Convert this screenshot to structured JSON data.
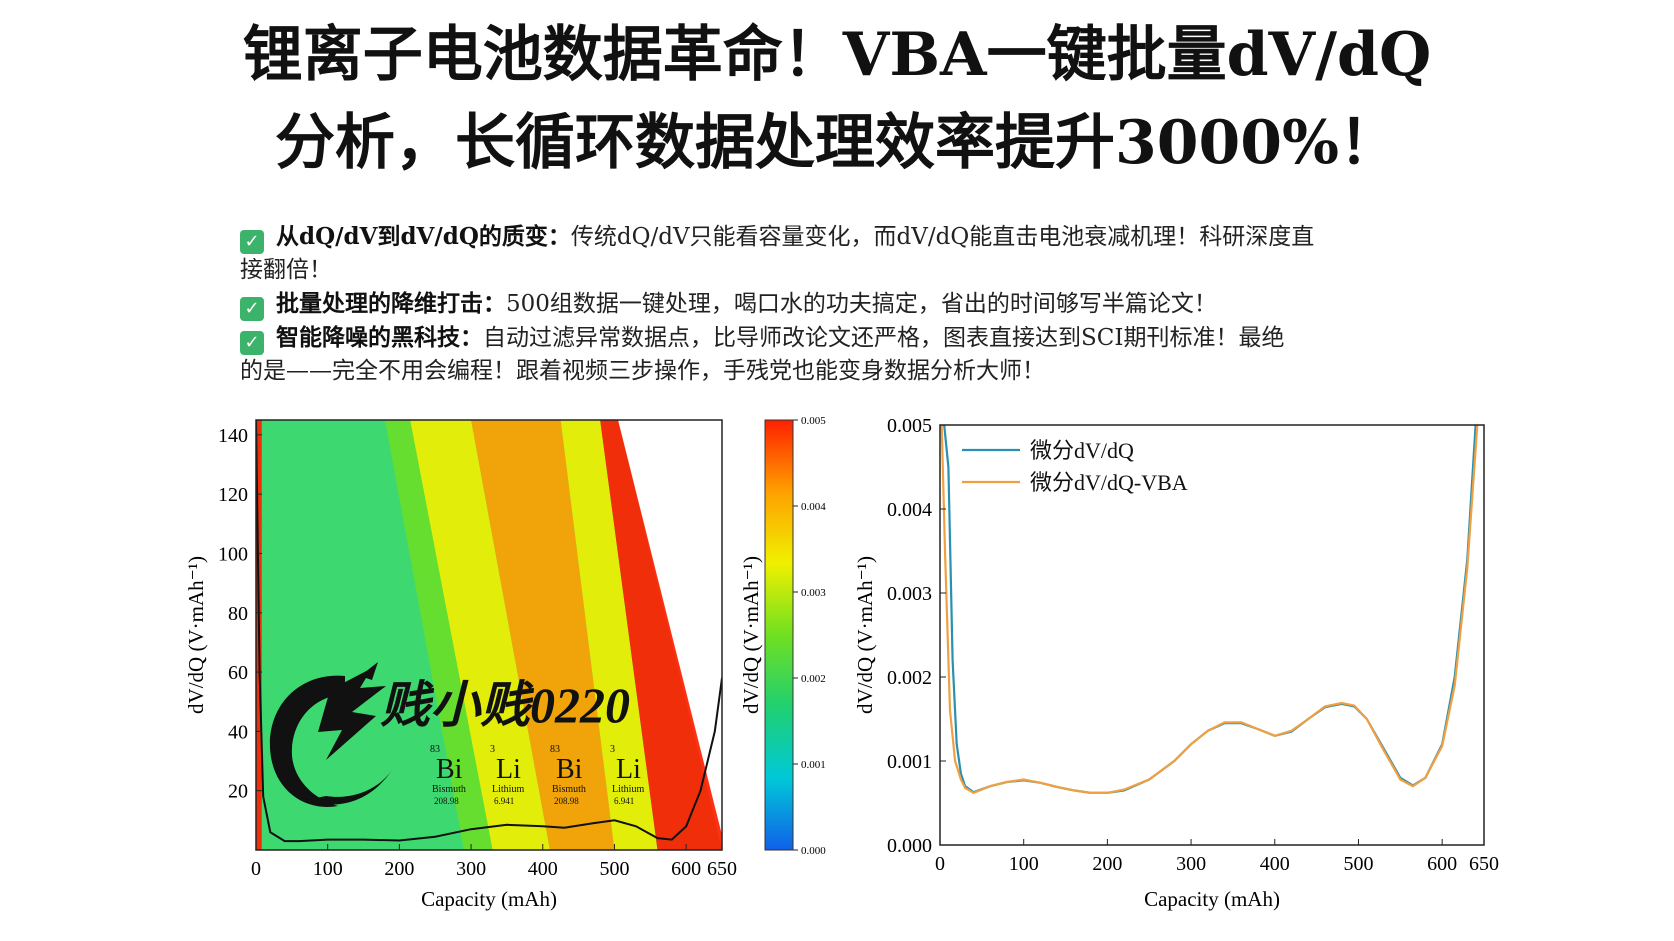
{
  "header": {
    "line1": "锂离子电池数据革命！VBA一键批量dV/dQ",
    "line2": "分析，长循环数据处理效率提升3000%！"
  },
  "bullets": [
    {
      "icon": "check-icon",
      "title": "从dQ/dV到dV/dQ的质变：",
      "text": "传统dQ/dV只能看容量变化，而dV/dQ能直击电池衰减机理！科研深度直",
      "cont": "接翻倍！"
    },
    {
      "icon": "check-icon",
      "title": "批量处理的降维打击：",
      "text": "500组数据一键处理，喝口水的功夫搞定，省出的时间够写半篇论文！",
      "cont": ""
    },
    {
      "icon": "check-icon",
      "title": "智能降噪的黑科技：",
      "text": "自动过滤异常数据点，比导师改论文还严格，图表直接达到SCI期刊标准！最绝",
      "cont": "的是——完全不用会编程！跟着视频三步操作，手残党也能变身数据分析大师！"
    }
  ],
  "watermark": {
    "text": "贱小贱0220",
    "elements": [
      {
        "number": "83",
        "symbol": "Bi",
        "name": "Bismuth",
        "mass": "208.98"
      },
      {
        "number": "3",
        "symbol": "Li",
        "name": "Lithium",
        "mass": "6.941"
      },
      {
        "number": "83",
        "symbol": "Bi",
        "name": "Bismuth",
        "mass": "208.98"
      },
      {
        "number": "3",
        "symbol": "Li",
        "name": "Lithium",
        "mass": "6.941"
      }
    ]
  },
  "chart_data": [
    {
      "type": "heatmap",
      "xlabel": "Capacity (mAh)",
      "ylabel": "dV/dQ (V·mAh⁻¹)",
      "xlim": [
        0,
        650
      ],
      "ylim": [
        0,
        145
      ],
      "xticks": [
        "0",
        "100",
        "200",
        "300",
        "400",
        "500",
        "600",
        "650"
      ],
      "xtick_values": [
        0,
        100,
        200,
        300,
        400,
        500,
        600,
        650
      ],
      "yticks": [
        "20",
        "40",
        "60",
        "80",
        "100",
        "120",
        "140"
      ],
      "ytick_values": [
        20,
        40,
        60,
        80,
        100,
        120,
        140
      ],
      "colorbar": {
        "label": "dV/dQ (V·mAh⁻¹)",
        "ticks": [
          "0.000",
          "0.001",
          "0.002",
          "0.003",
          "0.004",
          "0.005"
        ],
        "tick_values": [
          0,
          0.001,
          0.002,
          0.003,
          0.004,
          0.005
        ],
        "range": [
          0,
          0.005
        ],
        "colors": [
          "#1060e8",
          "#00c8d8",
          "#20d070",
          "#70e020",
          "#f0f000",
          "#ffa000",
          "#ff2000"
        ]
      },
      "bands": [
        {
          "x_bottom": [
            0,
            8
          ],
          "x_top": [
            0,
            8
          ],
          "level": 0.005
        },
        {
          "x_bottom": [
            330,
            410
          ],
          "x_top": [
            215,
            300
          ],
          "level": 0.0034
        },
        {
          "x_bottom": [
            410,
            500
          ],
          "x_top": [
            300,
            425
          ],
          "level": 0.0042
        },
        {
          "x_bottom": [
            500,
            560
          ],
          "x_top": [
            425,
            480
          ],
          "level": 0.0036
        },
        {
          "x_bottom": [
            560,
            650
          ],
          "x_top": [
            480,
            650
          ],
          "level": 0.0049
        }
      ],
      "empty_region_top_x": 505,
      "curve": {
        "x": [
          0,
          5,
          10,
          20,
          40,
          60,
          100,
          150,
          200,
          250,
          300,
          350,
          400,
          430,
          470,
          500,
          530,
          560,
          580,
          600,
          620,
          640,
          650
        ],
        "y": [
          145,
          60,
          18,
          6,
          3,
          3,
          3.5,
          3.5,
          3.2,
          4.5,
          7,
          8.5,
          8,
          7.5,
          9,
          10,
          8,
          4,
          3.5,
          8,
          20,
          40,
          58
        ]
      }
    },
    {
      "type": "line",
      "xlabel": "Capacity (mAh)",
      "ylabel": "dV/dQ (V·mAh⁻¹)",
      "xlim": [
        0,
        650
      ],
      "ylim": [
        0,
        0.005
      ],
      "xticks": [
        "0",
        "100",
        "200",
        "300",
        "400",
        "500",
        "600",
        "650"
      ],
      "xtick_values": [
        0,
        100,
        200,
        300,
        400,
        500,
        600,
        650
      ],
      "yticks": [
        "0.000",
        "0.001",
        "0.002",
        "0.003",
        "0.004",
        "0.005"
      ],
      "ytick_values": [
        0,
        0.001,
        0.002,
        0.003,
        0.004,
        0.005
      ],
      "legend_position": "top-left",
      "series": [
        {
          "name": "微分dV/dQ",
          "color": "#2a8fb0",
          "x": [
            5,
            10,
            15,
            20,
            25,
            30,
            40,
            60,
            80,
            100,
            120,
            140,
            160,
            180,
            200,
            220,
            250,
            280,
            300,
            320,
            340,
            360,
            380,
            400,
            420,
            440,
            460,
            480,
            495,
            510,
            530,
            550,
            565,
            580,
            600,
            615,
            630,
            640
          ],
          "y": [
            0.005,
            0.0045,
            0.0022,
            0.0012,
            0.00085,
            0.0007,
            0.00063,
            0.0007,
            0.00075,
            0.00077,
            0.00074,
            0.00069,
            0.00065,
            0.00062,
            0.00062,
            0.00065,
            0.00078,
            0.001,
            0.0012,
            0.00136,
            0.00145,
            0.00145,
            0.00138,
            0.0013,
            0.00135,
            0.0015,
            0.00164,
            0.00168,
            0.00165,
            0.0015,
            0.00115,
            0.0008,
            0.00071,
            0.0008,
            0.0012,
            0.002,
            0.0034,
            0.005
          ]
        },
        {
          "name": "微分dV/dQ-VBA",
          "color": "#f0a040",
          "x": [
            2,
            6,
            12,
            18,
            25,
            30,
            40,
            60,
            80,
            100,
            120,
            140,
            160,
            180,
            200,
            220,
            250,
            280,
            300,
            320,
            340,
            360,
            380,
            400,
            420,
            440,
            460,
            480,
            495,
            510,
            530,
            550,
            565,
            580,
            600,
            615,
            630,
            642
          ],
          "y": [
            0.005,
            0.0035,
            0.0016,
            0.001,
            0.00078,
            0.00068,
            0.00062,
            0.0007,
            0.00075,
            0.00078,
            0.00074,
            0.00069,
            0.00065,
            0.00062,
            0.00062,
            0.00066,
            0.00078,
            0.001,
            0.0012,
            0.00136,
            0.00146,
            0.00146,
            0.00138,
            0.0013,
            0.00136,
            0.0015,
            0.00165,
            0.00169,
            0.00166,
            0.0015,
            0.00113,
            0.00078,
            0.0007,
            0.0008,
            0.00118,
            0.0019,
            0.0033,
            0.005
          ]
        }
      ]
    }
  ]
}
